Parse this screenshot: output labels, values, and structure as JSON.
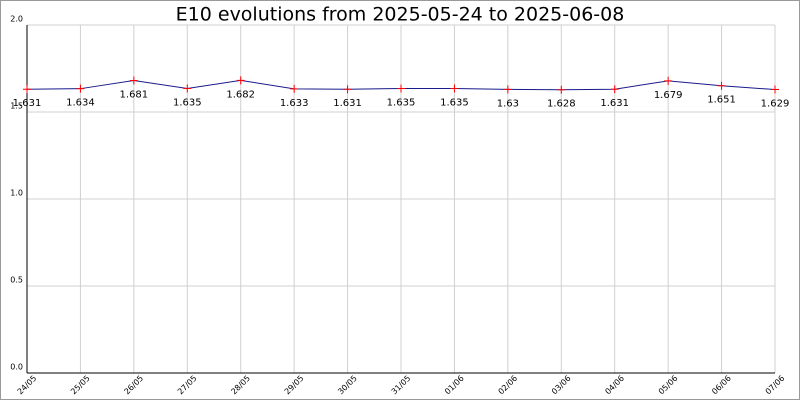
{
  "chart_data": {
    "type": "line",
    "title": "E10 evolutions from 2025-05-24 to 2025-06-08",
    "categories": [
      "24/05",
      "25/05",
      "26/05",
      "27/05",
      "28/05",
      "29/05",
      "30/05",
      "31/05",
      "01/06",
      "02/06",
      "03/06",
      "04/06",
      "05/06",
      "06/06",
      "07/06"
    ],
    "series": [
      {
        "name": "E10",
        "color": "#1a1a8c",
        "marker_color": "#ff0000",
        "values": [
          1.631,
          1.634,
          1.681,
          1.635,
          1.682,
          1.633,
          1.631,
          1.635,
          1.635,
          1.63,
          1.628,
          1.631,
          1.679,
          1.651,
          1.629
        ]
      }
    ],
    "ylim": [
      0,
      2
    ],
    "yticks": [
      {
        "value": 0,
        "label": "0.0"
      },
      0.5,
      {
        "value": 1,
        "label": "1.0"
      },
      1.5,
      {
        "value": 2,
        "label": "2.0"
      }
    ],
    "grid": true
  }
}
